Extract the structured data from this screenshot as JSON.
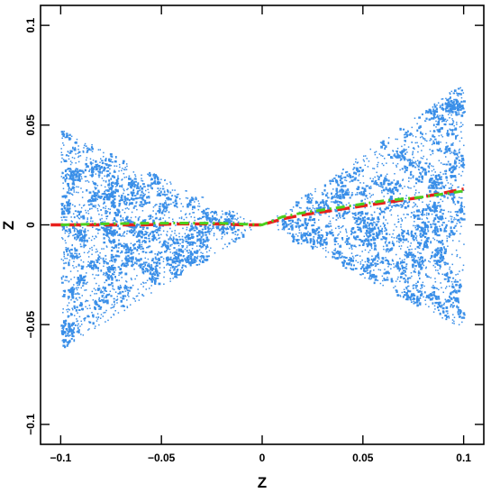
{
  "chart_data": {
    "type": "scatter",
    "xlabel": "Z",
    "ylabel": "Z",
    "xlim": [
      -0.11,
      0.11
    ],
    "ylim": [
      -0.11,
      0.11
    ],
    "xticks": [
      -0.1,
      -0.05,
      0,
      0.05,
      0.1
    ],
    "xtick_labels": [
      "−0.1",
      "−0.05",
      "0",
      "0.05",
      "0.1"
    ],
    "yticks": [
      -0.1,
      -0.05,
      0,
      0.05,
      0.1
    ],
    "ytick_labels": [
      "−0.1",
      "−0.05",
      "0",
      "0.05",
      "0.1"
    ],
    "grid": false,
    "series": [
      {
        "kind": "scatter",
        "color": "#3a8fe8",
        "description_of_extent": "two opposing cone-shaped point clouds",
        "left_cone": {
          "x_range": [
            -0.1,
            -0.01
          ],
          "y_top_at_x_min": 0.048,
          "y_bottom_at_x_min": -0.062
        },
        "right_cone": {
          "x_range": [
            0.01,
            0.1
          ],
          "y_top_at_x_max": 0.072,
          "y_bottom_at_x_max": -0.052
        }
      },
      {
        "kind": "line",
        "style": "dashed",
        "color": "#e8201c",
        "x": [
          -0.105,
          -0.08,
          -0.06,
          -0.04,
          -0.02,
          -0.01,
          0,
          0.01,
          0.02,
          0.04,
          0.06,
          0.08,
          0.1
        ],
        "y": [
          0,
          0,
          0,
          0.0005,
          0.0005,
          0,
          0,
          0.003,
          0.005,
          0.008,
          0.011,
          0.014,
          0.018
        ]
      },
      {
        "kind": "line",
        "style": "dash-dot",
        "color": "#4ccf1e",
        "x": [
          -0.1,
          -0.08,
          -0.06,
          -0.04,
          -0.02,
          -0.01,
          0,
          0.01,
          0.02,
          0.04,
          0.06,
          0.08,
          0.1
        ],
        "y": [
          0,
          0.0005,
          0.0008,
          0.0009,
          0.0008,
          0.0004,
          0,
          0.004,
          0.006,
          0.009,
          0.012,
          0.014,
          0.017
        ]
      }
    ]
  }
}
